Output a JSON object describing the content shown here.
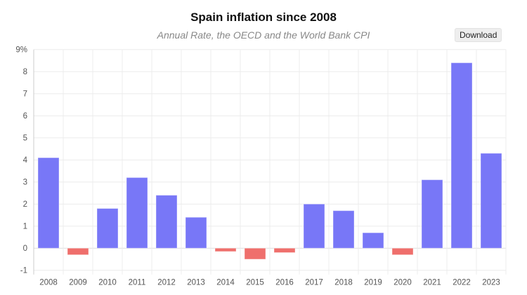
{
  "chart_data": {
    "type": "bar",
    "title": "Spain inflation since 2008",
    "subtitle": "Annual Rate, the OECD and the World Bank CPI",
    "categories": [
      "2008",
      "2009",
      "2010",
      "2011",
      "2012",
      "2013",
      "2014",
      "2015",
      "2016",
      "2017",
      "2018",
      "2019",
      "2020",
      "2021",
      "2022",
      "2023"
    ],
    "values": [
      4.1,
      -0.3,
      1.8,
      3.2,
      2.4,
      1.4,
      -0.15,
      -0.5,
      -0.2,
      2.0,
      1.7,
      0.7,
      -0.3,
      3.1,
      8.4,
      4.3
    ],
    "ylim": [
      -1,
      9
    ],
    "yticks": [
      "-1",
      "0",
      "1",
      "2",
      "3",
      "4",
      "5",
      "6",
      "7",
      "8",
      "9%"
    ],
    "grid": true,
    "colors": {
      "positive": "#7877f7",
      "negative": "#ef6f6c"
    }
  },
  "toolbar": {
    "download_label": "Download"
  }
}
